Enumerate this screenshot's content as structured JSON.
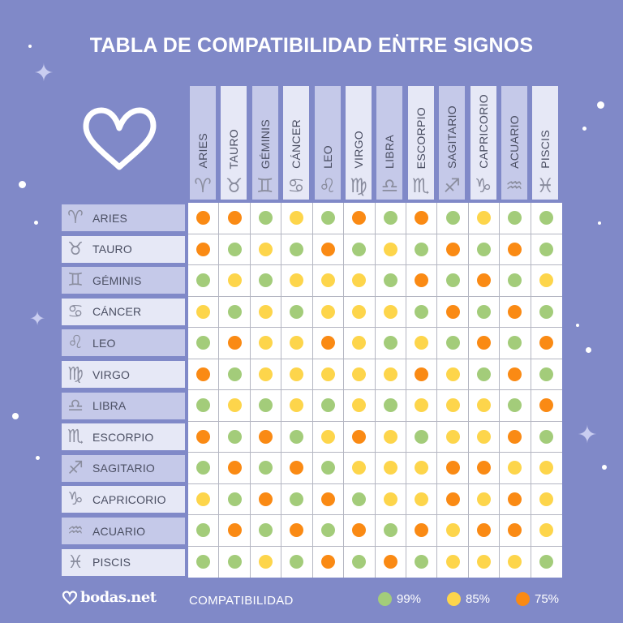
{
  "title": "TABLA DE COMPATIBILIDAD ENTRE SIGNOS",
  "colors": {
    "background": "#8089c8",
    "header_shade_a": "#c5c9e9",
    "header_shade_b": "#e6e8f6",
    "green": "#a3cc7a",
    "yellow": "#fdd54b",
    "orange": "#fa8a14"
  },
  "signs": [
    {
      "name": "ARIES",
      "glyph": "♈︎",
      "icon": "aries-icon"
    },
    {
      "name": "TAURO",
      "glyph": "♉︎",
      "icon": "taurus-icon"
    },
    {
      "name": "GÉMINIS",
      "glyph": "♊︎",
      "icon": "gemini-icon"
    },
    {
      "name": "CÁNCER",
      "glyph": "♋︎",
      "icon": "cancer-icon"
    },
    {
      "name": "LEO",
      "glyph": "♌︎",
      "icon": "leo-icon"
    },
    {
      "name": "VIRGO",
      "glyph": "♍︎",
      "icon": "virgo-icon"
    },
    {
      "name": "LIBRA",
      "glyph": "♎︎",
      "icon": "libra-icon"
    },
    {
      "name": "ESCORPIO",
      "glyph": "♏︎",
      "icon": "scorpio-icon"
    },
    {
      "name": "SAGITARIO",
      "glyph": "♐︎",
      "icon": "sagittarius-icon"
    },
    {
      "name": "CAPRICORIO",
      "glyph": "♑︎",
      "icon": "capricorn-icon"
    },
    {
      "name": "ACUARIO",
      "glyph": "♒︎",
      "icon": "aquarius-icon"
    },
    {
      "name": "PISCIS",
      "glyph": "♓︎",
      "icon": "pisces-icon"
    }
  ],
  "footer": {
    "brand": "bodas.net",
    "legend_title": "COMPATIBILIDAD",
    "legend": [
      {
        "label": "99%",
        "level": "G"
      },
      {
        "label": "85%",
        "level": "Y"
      },
      {
        "label": "75%",
        "level": "O"
      }
    ]
  },
  "chart_data": {
    "type": "heatmap",
    "title": "TABLA DE COMPATIBILIDAD ENTRE SIGNOS",
    "xlabel": "",
    "ylabel": "",
    "x": [
      "ARIES",
      "TAURO",
      "GÉMINIS",
      "CÁNCER",
      "LEO",
      "VIRGO",
      "LIBRA",
      "ESCORPIO",
      "SAGITARIO",
      "CAPRICORIO",
      "ACUARIO",
      "PISCIS"
    ],
    "y": [
      "ARIES",
      "TAURO",
      "GÉMINIS",
      "CÁNCER",
      "LEO",
      "VIRGO",
      "LIBRA",
      "ESCORPIO",
      "SAGITARIO",
      "CAPRICORIO",
      "ACUARIO",
      "PISCIS"
    ],
    "legend": {
      "title": "COMPATIBILIDAD",
      "G": "99%",
      "Y": "85%",
      "O": "75%"
    },
    "legend_position": "bottom",
    "grid": true,
    "levels": [
      [
        "O",
        "O",
        "G",
        "Y",
        "G",
        "O",
        "G",
        "O",
        "G",
        "Y",
        "G",
        "G"
      ],
      [
        "O",
        "G",
        "Y",
        "G",
        "O",
        "G",
        "Y",
        "G",
        "O",
        "G",
        "O",
        "G"
      ],
      [
        "G",
        "Y",
        "G",
        "Y",
        "Y",
        "Y",
        "G",
        "O",
        "G",
        "O",
        "G",
        "Y"
      ],
      [
        "Y",
        "G",
        "Y",
        "G",
        "Y",
        "Y",
        "Y",
        "G",
        "O",
        "G",
        "O",
        "G"
      ],
      [
        "G",
        "O",
        "Y",
        "Y",
        "O",
        "Y",
        "G",
        "Y",
        "G",
        "O",
        "G",
        "O"
      ],
      [
        "O",
        "G",
        "Y",
        "Y",
        "Y",
        "Y",
        "Y",
        "O",
        "Y",
        "G",
        "O",
        "G"
      ],
      [
        "G",
        "Y",
        "G",
        "Y",
        "G",
        "Y",
        "G",
        "Y",
        "Y",
        "Y",
        "G",
        "O"
      ],
      [
        "O",
        "G",
        "O",
        "G",
        "Y",
        "O",
        "Y",
        "G",
        "Y",
        "Y",
        "O",
        "G"
      ],
      [
        "G",
        "O",
        "G",
        "O",
        "G",
        "Y",
        "Y",
        "Y",
        "O",
        "O",
        "Y",
        "Y"
      ],
      [
        "Y",
        "G",
        "O",
        "G",
        "O",
        "G",
        "Y",
        "Y",
        "O",
        "Y",
        "O",
        "Y"
      ],
      [
        "G",
        "O",
        "G",
        "O",
        "G",
        "O",
        "G",
        "O",
        "Y",
        "O",
        "O",
        "Y"
      ],
      [
        "G",
        "G",
        "Y",
        "G",
        "O",
        "G",
        "O",
        "G",
        "Y",
        "Y",
        "Y",
        "G"
      ]
    ],
    "values": [
      [
        75,
        75,
        99,
        85,
        99,
        75,
        99,
        75,
        99,
        85,
        99,
        99
      ],
      [
        75,
        99,
        85,
        99,
        75,
        99,
        85,
        99,
        75,
        99,
        75,
        99
      ],
      [
        99,
        85,
        99,
        85,
        85,
        85,
        99,
        75,
        99,
        75,
        99,
        85
      ],
      [
        85,
        99,
        85,
        99,
        85,
        85,
        85,
        99,
        75,
        99,
        75,
        99
      ],
      [
        99,
        75,
        85,
        85,
        75,
        85,
        99,
        85,
        99,
        75,
        99,
        75
      ],
      [
        75,
        99,
        85,
        85,
        85,
        85,
        85,
        75,
        85,
        99,
        75,
        99
      ],
      [
        99,
        85,
        99,
        85,
        99,
        85,
        99,
        85,
        85,
        85,
        99,
        75
      ],
      [
        75,
        99,
        75,
        99,
        85,
        75,
        85,
        99,
        85,
        85,
        75,
        99
      ],
      [
        99,
        75,
        99,
        75,
        99,
        85,
        85,
        85,
        75,
        75,
        85,
        85
      ],
      [
        85,
        99,
        75,
        99,
        75,
        99,
        85,
        85,
        75,
        85,
        75,
        85
      ],
      [
        99,
        75,
        99,
        75,
        99,
        75,
        99,
        75,
        85,
        75,
        75,
        85
      ],
      [
        99,
        99,
        85,
        99,
        75,
        99,
        75,
        99,
        85,
        85,
        85,
        99
      ]
    ]
  }
}
